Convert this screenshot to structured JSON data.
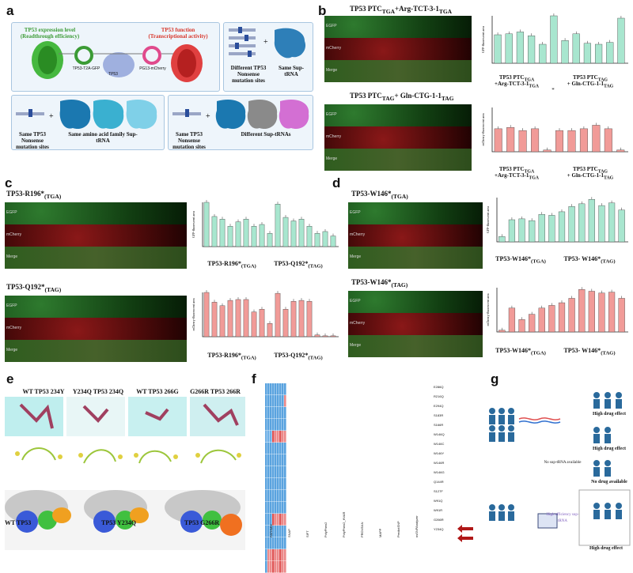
{
  "panels": {
    "a": "a",
    "b": "b",
    "c": "c",
    "d": "d",
    "e": "e",
    "f": "f",
    "g": "g"
  },
  "a": {
    "expr_title": "TP53 expression level",
    "expr_sub": "(Readthrough efficiency)",
    "func_title": "TP53 function",
    "func_sub": "(Transcriptional activity)",
    "construct1": "TP53-T2A-GFP",
    "construct2": "PG13-mCherry",
    "protein": "TP53",
    "diff_sites": "Different TP53 Nonsense mutation sites",
    "same_trna": "Same Sup-tRNA",
    "same_sites1": "Same TP53 Nonsense mutation sites",
    "same_family": "Same amino acid family Sup-tRNA",
    "same_sites2": "Same TP53 Nonsense mutation sites",
    "diff_trnas": "Different Sup-tRNAs"
  },
  "b": {
    "title1": "TP53 PTC",
    "title1_sub": "TGA",
    "title1_rest": "+Arg-TCT-3-1",
    "title1_rest_sub": "TGA",
    "title2": "TP53 PTC",
    "title2_sub": "TAG",
    "title2_rest": "+ Gln-CTG-1-1",
    "title2_rest_sub": "TAG",
    "rows": [
      "EGFP",
      "mCherry",
      "Merge"
    ],
    "y1": "GFP-fluorescent area",
    "y2": "mCherry-fluorescent area",
    "g1a": "TP53 PTC",
    "g1a_sub": "TGA",
    "g1b": "+Arg-TCT-3-1",
    "g1b_sub": "TGA",
    "g2a": "TP53 PTC",
    "g2a_sub": "TAG",
    "g2b": "+ Gln-CTG-1-1",
    "g2b_sub": "TAG",
    "star": "*"
  },
  "c": {
    "title1": "TP53-R196*",
    "title1_sub": "(TGA)",
    "title2": "TP53-Q192*",
    "title2_sub": "(TAG)",
    "rows": [
      "EGFP",
      "mCherry",
      "Merge"
    ],
    "y1": "GFP-fluorescent area",
    "y2": "mCherry-fluorescent area",
    "g1": "TP53-R196*",
    "g1_sub": "(TGA)",
    "g2": "TP53-Q192*",
    "g2_sub": "(TAG)"
  },
  "d": {
    "title1": "TP53-W146*",
    "title1_sub": "(TGA)",
    "title2": "TP53-W146*",
    "title2_sub": "(TAG)",
    "rows": [
      "EGFP",
      "mCherry",
      "Merge"
    ],
    "y1": "GFP-fluorescent area",
    "y2": "mCherry-fluorescent area",
    "g1": "TP53-W146*",
    "g1_sub": "(TGA)",
    "g2": "TP53- W146*",
    "g2_sub": "(TAG)"
  },
  "e": {
    "labels": [
      "WT TP53 234Y",
      "Y234Q TP53 234Q",
      "WT TP53 266G",
      "G266R TP53 266R"
    ],
    "bottom": [
      "WT TP53",
      "TP53 Y234Q",
      "TP53 G266R"
    ]
  },
  "f": {
    "rows": [
      "E286Q",
      "R216Q",
      "E294Q",
      "S183R",
      "S166R",
      "W146Q",
      "W146C",
      "W146Y",
      "W146R",
      "W146G",
      "Q144R",
      "S127F",
      "W91Q",
      "W91R",
      "G266R",
      "Y234Q"
    ],
    "cols": [
      "FATHMM",
      "SNAP",
      "SIFT",
      "PolyPhen2",
      "PolyPhen2_HVAR",
      "PROVEAN",
      "MAPP",
      "PredictSNP",
      "nsSNPAnalyzer"
    ]
  },
  "g": {
    "high1": "High drug effect",
    "high2": "High drug effect",
    "nosup": "No sup-tRNA available",
    "nodrug": "No drug available",
    "high3": "High drug effect",
    "suptrna": "High efficiency sup-tRNA"
  },
  "colors": {
    "green_bar": "#a8e6cf",
    "red_bar": "#f19b98",
    "accent_green": "#3b9b35",
    "accent_red": "#d8352a"
  },
  "chart_data": [
    {
      "type": "bar",
      "title": "",
      "ylabel": "GFP-fluorescent area",
      "values": [
        60,
        62,
        66,
        58,
        40,
        100,
        48,
        62,
        42,
        40,
        44,
        95
      ]
    },
    {
      "type": "bar",
      "title": "",
      "ylabel": "mCherry-fluorescent area",
      "values": [
        52,
        55,
        48,
        52,
        4,
        48,
        48,
        52,
        60,
        52,
        4
      ]
    },
    {
      "type": "bar",
      "title": "",
      "ylabel": "GFP-fluorescent area",
      "values": [
        100,
        68,
        62,
        46,
        56,
        62,
        46,
        50,
        30,
        96,
        66,
        58,
        62,
        46,
        30,
        34,
        24
      ]
    },
    {
      "type": "bar",
      "title": "",
      "ylabel": "mCherry-fluorescent area",
      "values": [
        100,
        78,
        70,
        82,
        84,
        84,
        56,
        62,
        30,
        98,
        62,
        80,
        82,
        80,
        4,
        2,
        2
      ]
    },
    {
      "type": "bar",
      "title": "",
      "ylabel": "GFP-fluorescent area",
      "values": [
        12,
        50,
        52,
        48,
        62,
        60,
        68,
        80,
        86,
        96,
        82,
        88,
        72
      ]
    },
    {
      "type": "bar",
      "title": "",
      "ylabel": "mCherry-fluorescent area",
      "values": [
        4,
        54,
        28,
        40,
        54,
        60,
        66,
        76,
        96,
        92,
        88,
        90,
        76
      ]
    }
  ]
}
